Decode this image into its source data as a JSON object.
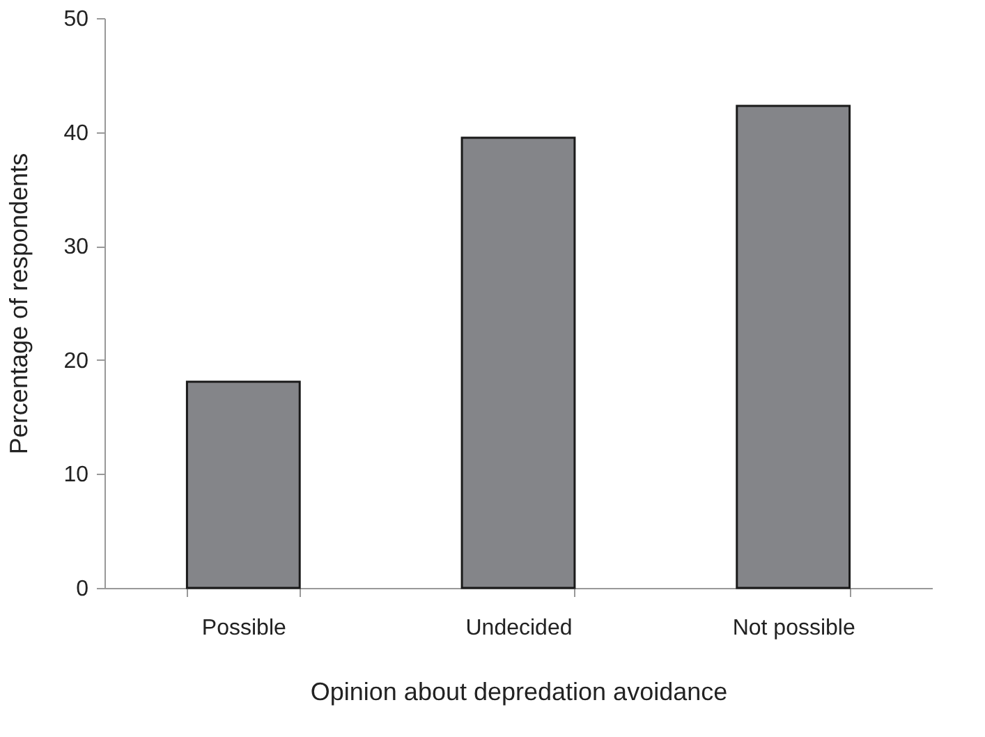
{
  "chart_data": {
    "type": "bar",
    "xlabel": "Opinion about depredation avoidance",
    "ylabel": "Percentage of respondents",
    "categories": [
      "Possible",
      "Undecided",
      "Not possible"
    ],
    "values": [
      18.1,
      39.5,
      42.3
    ],
    "color": "#848589",
    "ylim": [
      0,
      50
    ],
    "yticks": [
      0,
      10,
      20,
      30,
      40,
      50
    ],
    "grid": false
  }
}
